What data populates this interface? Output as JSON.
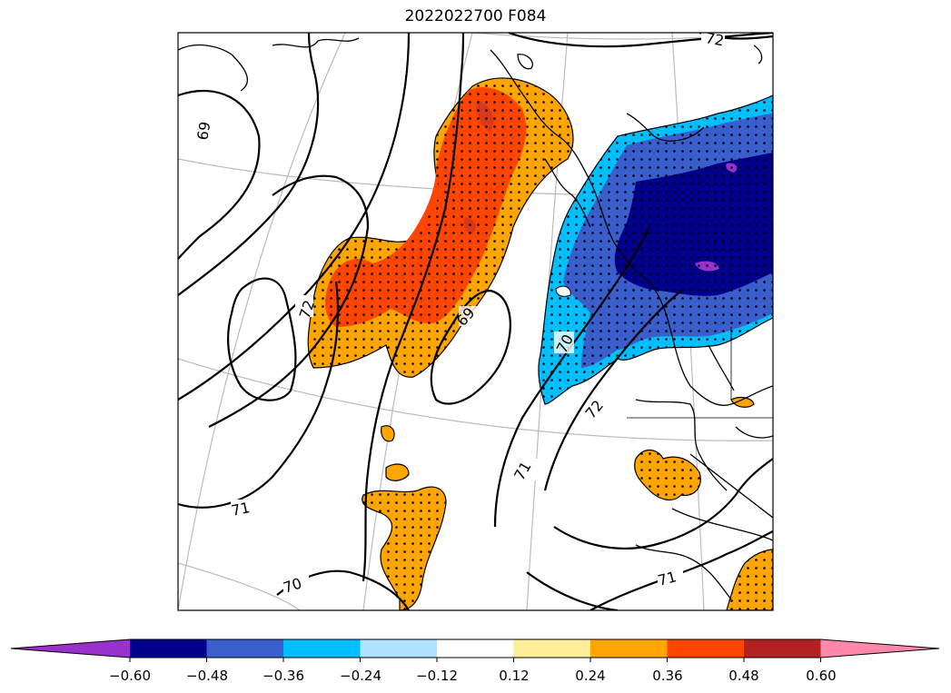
{
  "title": "2022022700 F084",
  "contour_labels": [
    "69",
    "72",
    "69",
    "70",
    "72",
    "71",
    "71",
    "71",
    "70",
    "72"
  ],
  "colorbar": {
    "colors": [
      "#9932cc",
      "#00008b",
      "#3a5fcd",
      "#00bfff",
      "#b0e2ff",
      "#ffffff",
      "#ffee99",
      "#ffa500",
      "#ff4500",
      "#b22222",
      "#ff88aa"
    ],
    "tick_labels": [
      "−0.60",
      "−0.48",
      "−0.36",
      "−0.24",
      "−0.12",
      "0.12",
      "0.24",
      "0.36",
      "0.48",
      "0.60"
    ]
  }
}
